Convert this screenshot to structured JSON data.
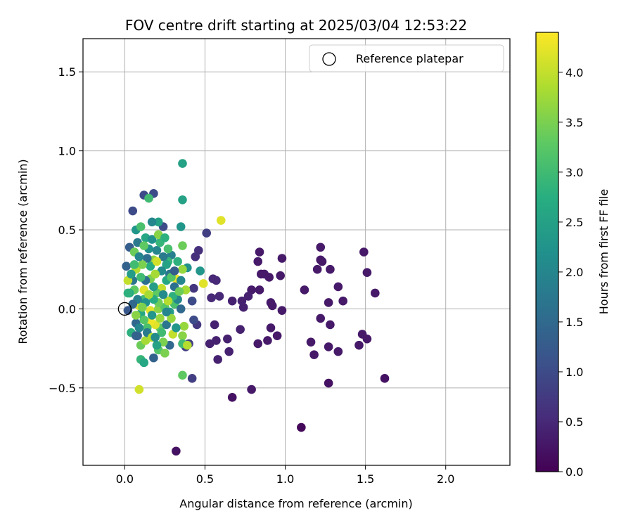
{
  "chart_data": {
    "type": "scatter",
    "title": "FOV centre drift starting at 2025/03/04 12:53:22",
    "xlabel": "Angular distance from reference (arcmin)",
    "ylabel": "Rotation from reference (arcmin)",
    "xlim": [
      -0.26,
      2.4
    ],
    "ylim": [
      -0.99,
      1.71
    ],
    "xticks": [
      0.0,
      0.5,
      1.0,
      1.5,
      2.0
    ],
    "xtick_labels": [
      "0.0",
      "0.5",
      "1.0",
      "1.5",
      "2.0"
    ],
    "yticks": [
      -0.5,
      0.0,
      0.5,
      1.0,
      1.5
    ],
    "ytick_labels": [
      "−0.5",
      "0.0",
      "0.5",
      "1.0",
      "1.5"
    ],
    "grid": true,
    "legend": {
      "label": "Reference platepar",
      "placement": "upper-right",
      "marker": "open-circle",
      "point": [
        0,
        0
      ]
    },
    "colorbar": {
      "label": "Hours from first FF file",
      "colormap": "viridis",
      "range": [
        0,
        4.4
      ],
      "ticks": [
        0.0,
        0.5,
        1.0,
        1.5,
        2.0,
        2.5,
        3.0,
        3.5,
        4.0
      ],
      "tick_labels": [
        "0.0",
        "0.5",
        "1.0",
        "1.5",
        "2.0",
        "2.5",
        "3.0",
        "3.5",
        "4.0"
      ]
    },
    "points": [
      {
        "x": 1.1,
        "y": -0.75,
        "c": 0.1
      },
      {
        "x": 0.32,
        "y": -0.9,
        "c": 0.2
      },
      {
        "x": 0.67,
        "y": -0.56,
        "c": 0.2
      },
      {
        "x": 0.79,
        "y": -0.51,
        "c": 0.3
      },
      {
        "x": 1.62,
        "y": -0.44,
        "c": 0.2
      },
      {
        "x": 1.27,
        "y": -0.47,
        "c": 0.2
      },
      {
        "x": 1.49,
        "y": 0.36,
        "c": 0.3
      },
      {
        "x": 1.51,
        "y": 0.23,
        "c": 0.3
      },
      {
        "x": 1.56,
        "y": 0.1,
        "c": 0.3
      },
      {
        "x": 1.48,
        "y": -0.16,
        "c": 0.3
      },
      {
        "x": 1.51,
        "y": -0.19,
        "c": 0.3
      },
      {
        "x": 1.46,
        "y": -0.23,
        "c": 0.3
      },
      {
        "x": 1.33,
        "y": 0.14,
        "c": 0.3
      },
      {
        "x": 1.36,
        "y": 0.05,
        "c": 0.3
      },
      {
        "x": 1.28,
        "y": 0.25,
        "c": 0.3
      },
      {
        "x": 1.22,
        "y": 0.39,
        "c": 0.3
      },
      {
        "x": 1.22,
        "y": 0.31,
        "c": 0.3
      },
      {
        "x": 1.23,
        "y": 0.3,
        "c": 0.3
      },
      {
        "x": 1.2,
        "y": 0.25,
        "c": 0.3
      },
      {
        "x": 1.27,
        "y": 0.04,
        "c": 0.3
      },
      {
        "x": 1.28,
        "y": -0.1,
        "c": 0.3
      },
      {
        "x": 1.22,
        "y": -0.06,
        "c": 0.3
      },
      {
        "x": 1.27,
        "y": -0.24,
        "c": 0.3
      },
      {
        "x": 1.33,
        "y": -0.27,
        "c": 0.3
      },
      {
        "x": 1.16,
        "y": -0.21,
        "c": 0.3
      },
      {
        "x": 1.18,
        "y": -0.29,
        "c": 0.3
      },
      {
        "x": 1.12,
        "y": 0.12,
        "c": 0.3
      },
      {
        "x": 0.98,
        "y": 0.32,
        "c": 0.3
      },
      {
        "x": 0.97,
        "y": 0.21,
        "c": 0.3
      },
      {
        "x": 0.98,
        "y": -0.01,
        "c": 0.3
      },
      {
        "x": 0.92,
        "y": 0.02,
        "c": 0.3
      },
      {
        "x": 0.91,
        "y": 0.04,
        "c": 0.3
      },
      {
        "x": 0.91,
        "y": -0.12,
        "c": 0.3
      },
      {
        "x": 0.95,
        "y": -0.17,
        "c": 0.3
      },
      {
        "x": 0.89,
        "y": -0.2,
        "c": 0.3
      },
      {
        "x": 0.84,
        "y": 0.36,
        "c": 0.3
      },
      {
        "x": 0.83,
        "y": 0.3,
        "c": 0.3
      },
      {
        "x": 0.85,
        "y": 0.22,
        "c": 0.3
      },
      {
        "x": 0.87,
        "y": 0.22,
        "c": 0.3
      },
      {
        "x": 0.9,
        "y": 0.2,
        "c": 0.3
      },
      {
        "x": 0.84,
        "y": 0.12,
        "c": 0.3
      },
      {
        "x": 0.83,
        "y": -0.22,
        "c": 0.3
      },
      {
        "x": 0.79,
        "y": 0.12,
        "c": 0.3
      },
      {
        "x": 0.77,
        "y": 0.08,
        "c": 0.4
      },
      {
        "x": 0.73,
        "y": 0.05,
        "c": 0.4
      },
      {
        "x": 0.74,
        "y": 0.01,
        "c": 0.4
      },
      {
        "x": 0.67,
        "y": 0.05,
        "c": 0.4
      },
      {
        "x": 0.72,
        "y": -0.13,
        "c": 0.4
      },
      {
        "x": 0.64,
        "y": -0.19,
        "c": 0.4
      },
      {
        "x": 0.65,
        "y": -0.27,
        "c": 0.4
      },
      {
        "x": 0.58,
        "y": -0.32,
        "c": 0.4
      },
      {
        "x": 0.57,
        "y": -0.2,
        "c": 0.4
      },
      {
        "x": 0.56,
        "y": -0.1,
        "c": 0.4
      },
      {
        "x": 0.53,
        "y": -0.22,
        "c": 0.4
      },
      {
        "x": 0.59,
        "y": 0.08,
        "c": 0.5
      },
      {
        "x": 0.55,
        "y": 0.19,
        "c": 0.5
      },
      {
        "x": 0.57,
        "y": 0.18,
        "c": 0.5
      },
      {
        "x": 0.54,
        "y": 0.07,
        "c": 0.5
      },
      {
        "x": 0.51,
        "y": 0.48,
        "c": 0.8
      },
      {
        "x": 0.46,
        "y": 0.37,
        "c": 0.6
      },
      {
        "x": 0.44,
        "y": 0.33,
        "c": 0.6
      },
      {
        "x": 0.43,
        "y": 0.13,
        "c": 0.7
      },
      {
        "x": 0.45,
        "y": -0.1,
        "c": 0.7
      },
      {
        "x": 0.42,
        "y": -0.44,
        "c": 0.8
      },
      {
        "x": 0.4,
        "y": -0.22,
        "c": 0.8
      },
      {
        "x": 0.38,
        "y": -0.24,
        "c": 0.8
      },
      {
        "x": 0.43,
        "y": -0.07,
        "c": 1.0
      },
      {
        "x": 0.42,
        "y": 0.05,
        "c": 1.0
      },
      {
        "x": 0.05,
        "y": 0.62,
        "c": 1.0
      },
      {
        "x": 0.12,
        "y": 0.72,
        "c": 1.0
      },
      {
        "x": 0.18,
        "y": 0.73,
        "c": 1.0
      },
      {
        "x": 0.24,
        "y": 0.52,
        "c": 1.0
      },
      {
        "x": 0.36,
        "y": 0.92,
        "c": 2.5
      },
      {
        "x": 0.36,
        "y": 0.69,
        "c": 2.5
      },
      {
        "x": 0.15,
        "y": 0.7,
        "c": 3.0
      },
      {
        "x": 0.21,
        "y": 0.55,
        "c": 2.5
      },
      {
        "x": 0.17,
        "y": 0.55,
        "c": 2.0
      },
      {
        "x": 0.35,
        "y": 0.52,
        "c": 2.3
      },
      {
        "x": 0.6,
        "y": 0.56,
        "c": 4.2
      },
      {
        "x": 0.36,
        "y": 0.4,
        "c": 3.4
      },
      {
        "x": 0.36,
        "y": -0.42,
        "c": 3.3
      },
      {
        "x": 0.09,
        "y": -0.51,
        "c": 4.1
      },
      {
        "x": 0.1,
        "y": -0.32,
        "c": 2.9
      },
      {
        "x": 0.12,
        "y": -0.34,
        "c": 2.6
      },
      {
        "x": 0.1,
        "y": -0.23,
        "c": 3.4
      },
      {
        "x": 0.13,
        "y": -0.2,
        "c": 3.8
      },
      {
        "x": 0.18,
        "y": -0.31,
        "c": 1.4
      },
      {
        "x": 0.21,
        "y": -0.26,
        "c": 3.2
      },
      {
        "x": 0.25,
        "y": -0.28,
        "c": 3.5
      },
      {
        "x": 0.28,
        "y": -0.23,
        "c": 1.5
      },
      {
        "x": 0.36,
        "y": -0.17,
        "c": 3.6
      },
      {
        "x": 0.36,
        "y": -0.22,
        "c": 3.0
      },
      {
        "x": 0.39,
        "y": -0.23,
        "c": 3.9
      },
      {
        "x": 0.37,
        "y": -0.11,
        "c": 3.7
      },
      {
        "x": 0.3,
        "y": -0.16,
        "c": 4.0
      },
      {
        "x": 0.24,
        "y": -0.21,
        "c": 3.5
      },
      {
        "x": 0.22,
        "y": -0.12,
        "c": 3.3
      },
      {
        "x": 0.19,
        "y": -0.1,
        "c": 4.2
      },
      {
        "x": 0.16,
        "y": -0.08,
        "c": 4.3
      },
      {
        "x": 0.14,
        "y": -0.12,
        "c": 3.1
      },
      {
        "x": 0.08,
        "y": -0.17,
        "c": 1.3
      },
      {
        "x": 0.04,
        "y": -0.15,
        "c": 2.8
      },
      {
        "x": 0.07,
        "y": -0.09,
        "c": 1.5
      },
      {
        "x": 0.1,
        "y": -0.03,
        "c": 2.6
      },
      {
        "x": 0.09,
        "y": 0.02,
        "c": 4.1
      },
      {
        "x": 0.12,
        "y": 0.06,
        "c": 3.0
      },
      {
        "x": 0.16,
        "y": -0.01,
        "c": 4.2
      },
      {
        "x": 0.21,
        "y": 0.0,
        "c": 3.6
      },
      {
        "x": 0.25,
        "y": 0.01,
        "c": 3.2
      },
      {
        "x": 0.28,
        "y": -0.02,
        "c": 2.4
      },
      {
        "x": 0.31,
        "y": 0.03,
        "c": 3.1
      },
      {
        "x": 0.33,
        "y": 0.06,
        "c": 2.0
      },
      {
        "x": 0.35,
        "y": 0.0,
        "c": 1.5
      },
      {
        "x": 0.32,
        "y": 0.19,
        "c": 4.3
      },
      {
        "x": 0.35,
        "y": 0.18,
        "c": 2.0
      },
      {
        "x": 0.38,
        "y": 0.12,
        "c": 3.8
      },
      {
        "x": 0.39,
        "y": 0.26,
        "c": 2.2
      },
      {
        "x": 0.36,
        "y": 0.25,
        "c": 3.7
      },
      {
        "x": 0.33,
        "y": 0.3,
        "c": 2.8
      },
      {
        "x": 0.29,
        "y": 0.34,
        "c": 1.9
      },
      {
        "x": 0.27,
        "y": 0.3,
        "c": 2.9
      },
      {
        "x": 0.28,
        "y": 0.22,
        "c": 1.7
      },
      {
        "x": 0.26,
        "y": 0.18,
        "c": 2.6
      },
      {
        "x": 0.23,
        "y": 0.13,
        "c": 4.0
      },
      {
        "x": 0.2,
        "y": 0.1,
        "c": 3.3
      },
      {
        "x": 0.18,
        "y": 0.14,
        "c": 2.4
      },
      {
        "x": 0.16,
        "y": 0.19,
        "c": 3.5
      },
      {
        "x": 0.13,
        "y": 0.18,
        "c": 1.6
      },
      {
        "x": 0.12,
        "y": 0.12,
        "c": 4.2
      },
      {
        "x": 0.1,
        "y": 0.2,
        "c": 3.0
      },
      {
        "x": 0.07,
        "y": 0.25,
        "c": 3.9
      },
      {
        "x": 0.05,
        "y": 0.18,
        "c": 1.7
      },
      {
        "x": 0.02,
        "y": 0.18,
        "c": 4.0
      },
      {
        "x": 0.01,
        "y": 0.27,
        "c": 1.4
      },
      {
        "x": 0.03,
        "y": 0.39,
        "c": 1.3
      },
      {
        "x": 0.06,
        "y": 0.36,
        "c": 3.4
      },
      {
        "x": 0.07,
        "y": 0.5,
        "c": 2.3
      },
      {
        "x": 0.1,
        "y": 0.52,
        "c": 3.1
      },
      {
        "x": 0.13,
        "y": 0.45,
        "c": 2.6
      },
      {
        "x": 0.15,
        "y": 0.38,
        "c": 2.2
      },
      {
        "x": 0.18,
        "y": 0.31,
        "c": 3.6
      },
      {
        "x": 0.2,
        "y": 0.37,
        "c": 2.0
      },
      {
        "x": 0.22,
        "y": 0.42,
        "c": 2.9
      },
      {
        "x": 0.24,
        "y": 0.33,
        "c": 1.8
      },
      {
        "x": 0.26,
        "y": 0.28,
        "c": 2.5
      },
      {
        "x": 0.29,
        "y": 0.2,
        "c": 3.2
      },
      {
        "x": 0.31,
        "y": 0.14,
        "c": 1.6
      },
      {
        "x": 0.3,
        "y": 0.08,
        "c": 2.8
      },
      {
        "x": 0.27,
        "y": 0.05,
        "c": 3.9
      },
      {
        "x": 0.24,
        "y": 0.09,
        "c": 2.1
      },
      {
        "x": 0.21,
        "y": 0.04,
        "c": 3.4
      },
      {
        "x": 0.18,
        "y": 0.06,
        "c": 2.7
      },
      {
        "x": 0.15,
        "y": 0.09,
        "c": 3.8
      },
      {
        "x": 0.13,
        "y": 0.04,
        "c": 2.2
      },
      {
        "x": 0.11,
        "y": 0.01,
        "c": 3.5
      },
      {
        "x": 0.08,
        "y": 0.06,
        "c": 1.9
      },
      {
        "x": 0.06,
        "y": 0.12,
        "c": 3.3
      },
      {
        "x": 0.03,
        "y": 0.1,
        "c": 2.7
      },
      {
        "x": 0.05,
        "y": 0.03,
        "c": 1.5
      },
      {
        "x": 0.07,
        "y": -0.04,
        "c": 3.6
      },
      {
        "x": 0.09,
        "y": -0.12,
        "c": 2.0
      },
      {
        "x": 0.12,
        "y": -0.07,
        "c": 3.2
      },
      {
        "x": 0.14,
        "y": -0.15,
        "c": 1.8
      },
      {
        "x": 0.17,
        "y": -0.18,
        "c": 3.9
      },
      {
        "x": 0.2,
        "y": -0.23,
        "c": 2.5
      },
      {
        "x": 0.23,
        "y": -0.15,
        "c": 3.0
      },
      {
        "x": 0.26,
        "y": -0.1,
        "c": 1.7
      },
      {
        "x": 0.29,
        "y": -0.06,
        "c": 3.7
      },
      {
        "x": 0.32,
        "y": -0.12,
        "c": 2.3
      },
      {
        "x": 0.34,
        "y": 0.11,
        "c": 3.4
      },
      {
        "x": 0.31,
        "y": 0.24,
        "c": 1.3
      },
      {
        "x": 0.27,
        "y": 0.38,
        "c": 3.1
      },
      {
        "x": 0.23,
        "y": 0.24,
        "c": 2.1
      },
      {
        "x": 0.19,
        "y": 0.22,
        "c": 3.8
      },
      {
        "x": 0.16,
        "y": 0.27,
        "c": 2.7
      },
      {
        "x": 0.14,
        "y": 0.32,
        "c": 1.6
      },
      {
        "x": 0.11,
        "y": 0.28,
        "c": 3.5
      },
      {
        "x": 0.09,
        "y": 0.33,
        "c": 2.0
      },
      {
        "x": 0.06,
        "y": 0.28,
        "c": 3.0
      },
      {
        "x": 0.04,
        "y": 0.22,
        "c": 2.4
      },
      {
        "x": 0.08,
        "y": 0.42,
        "c": 1.8
      },
      {
        "x": 0.12,
        "y": 0.4,
        "c": 3.3
      },
      {
        "x": 0.17,
        "y": 0.44,
        "c": 2.2
      },
      {
        "x": 0.21,
        "y": 0.47,
        "c": 3.6
      },
      {
        "x": 0.25,
        "y": 0.45,
        "c": 2.8
      },
      {
        "x": 0.2,
        "y": 0.3,
        "c": 4.1
      },
      {
        "x": 0.17,
        "y": -0.04,
        "c": 2.3
      },
      {
        "x": 0.22,
        "y": -0.06,
        "c": 3.7
      },
      {
        "x": 0.26,
        "y": -0.02,
        "c": 2.0
      },
      {
        "x": 0.49,
        "y": 0.16,
        "c": 4.2
      },
      {
        "x": 0.47,
        "y": 0.24,
        "c": 2.3
      },
      {
        "x": 0.02,
        "y": 0.1,
        "c": 2.8
      },
      {
        "x": 0.02,
        "y": -0.01,
        "c": 1.2
      },
      {
        "x": 0.07,
        "y": -0.17,
        "c": 1.4
      },
      {
        "x": 0.19,
        "y": -0.18,
        "c": 2.1
      }
    ]
  }
}
